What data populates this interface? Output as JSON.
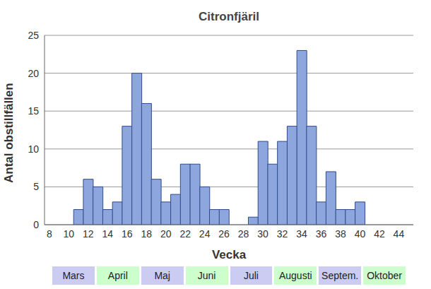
{
  "chart_data": {
    "type": "bar",
    "title": "Citronfjäril",
    "x_label": "Vecka",
    "y_label": "Antal obstillfällen",
    "categories": [
      "8",
      null,
      "10",
      null,
      "12",
      null,
      "14",
      null,
      "16",
      null,
      "18",
      null,
      "20",
      null,
      "22",
      null,
      "24",
      null,
      "26",
      null,
      "28",
      null,
      "30",
      null,
      "32",
      null,
      "34",
      null,
      "36",
      null,
      "38",
      null,
      "40",
      null,
      "42",
      null,
      "44",
      null
    ],
    "values": [
      0,
      0,
      0,
      2,
      6,
      5,
      2,
      3,
      13,
      20,
      16,
      6,
      3,
      4,
      8,
      8,
      5,
      2,
      2,
      0,
      0,
      1,
      11,
      8,
      11,
      13,
      23,
      13,
      3,
      7,
      2,
      2,
      3,
      0,
      0,
      0,
      0,
      0
    ],
    "color": "#8da6dd",
    "ylim": [
      0,
      25
    ],
    "yticks": [
      0,
      5,
      10,
      15,
      20,
      25
    ],
    "grid": true,
    "annotations": [
      {
        "text": "Mars",
        "color": "#ccccf2"
      },
      {
        "text": "April",
        "color": "#ccffcc"
      },
      {
        "text": "Maj",
        "color": "#ccccf2"
      },
      {
        "text": "Juni",
        "color": "#ccffcc"
      },
      {
        "text": "Juli",
        "color": "#ccccf2"
      },
      {
        "text": "Augusti",
        "color": "#ccffcc"
      },
      {
        "text": "Septem.",
        "color": "#ccccf2"
      },
      {
        "text": "Oktober",
        "color": "#ccffcc"
      }
    ]
  }
}
